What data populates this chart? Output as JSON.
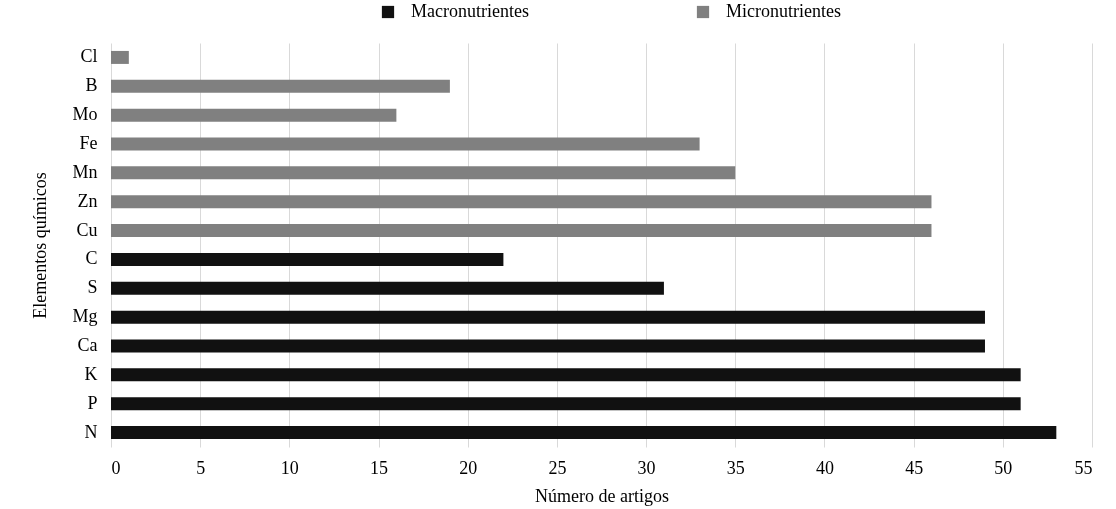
{
  "chart_data": {
    "type": "bar",
    "orientation": "horizontal",
    "xlabel": "Número de artigos",
    "ylabel": "Elementos  químicos",
    "categories": [
      "Cl",
      "B",
      "Mo",
      "Fe",
      "Mn",
      "Zn",
      "Cu",
      "C",
      "S",
      "Mg",
      "Ca",
      "K",
      "P",
      "N"
    ],
    "series": [
      {
        "name": "Macronutrientes",
        "color": "#111111",
        "values": [
          null,
          null,
          null,
          null,
          null,
          null,
          null,
          22,
          31,
          49,
          49,
          51,
          51,
          53
        ]
      },
      {
        "name": "Micronutrientes",
        "color": "#808080",
        "values": [
          1,
          19,
          16,
          33,
          35,
          46,
          46,
          null,
          null,
          null,
          null,
          null,
          null,
          null
        ]
      }
    ],
    "xlim": [
      0,
      55
    ],
    "xticks": [
      0,
      5,
      10,
      15,
      20,
      25,
      30,
      35,
      40,
      45,
      50,
      55
    ],
    "grid": "x",
    "legend": "top"
  }
}
